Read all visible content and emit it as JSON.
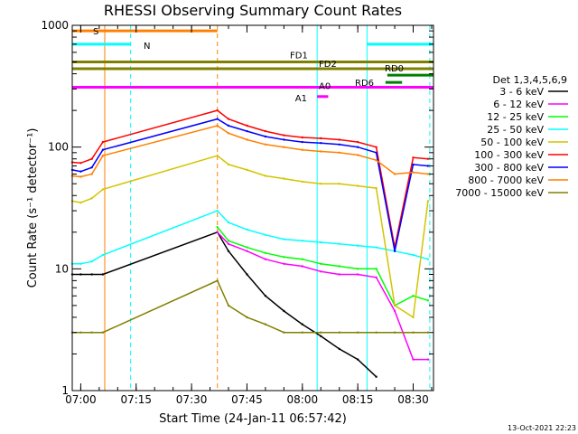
{
  "chart_data": {
    "type": "line",
    "title": "RHESSI Observing Summary Count Rates",
    "xlabel": "Start Time (24-Jan-11 06:57:42)",
    "ylabel": "Count Rate (s⁻¹ detector⁻¹)",
    "y_scale": "log",
    "ylim": [
      1,
      1000
    ],
    "xlim": [
      "06:57:42",
      "08:35:30"
    ],
    "x_ticks": [
      "07:00",
      "07:15",
      "07:30",
      "07:45",
      "08:00",
      "08:15",
      "08:30"
    ],
    "y_ticks": [
      "1",
      "10",
      "100",
      "1000"
    ],
    "timestamp": "13-Oct-2021 22:23",
    "legend": {
      "placement": "right",
      "header": "Det 1,3,4,5,6,9",
      "entries": [
        {
          "label": "3 - 6 keV",
          "color": "#000000"
        },
        {
          "label": "6 - 12 keV",
          "color": "#ff00ff"
        },
        {
          "label": "12 - 25 keV",
          "color": "#00ff00"
        },
        {
          "label": "25 - 50 keV",
          "color": "#00ffff"
        },
        {
          "label": "50 - 100 keV",
          "color": "#d4c400"
        },
        {
          "label": "100 - 300 keV",
          "color": "#ff0000"
        },
        {
          "label": "300 - 800 keV",
          "color": "#0000ff"
        },
        {
          "label": "800 - 7000 keV",
          "color": "#ff8000"
        },
        {
          "label": "7000 - 15000 keV",
          "color": "#808000"
        }
      ]
    },
    "flags": [
      {
        "label": "S",
        "color": "#ff8000",
        "start": "06:57:42",
        "end": "07:37:00",
        "y": 900
      },
      {
        "label": "N",
        "color": "#00ffff",
        "start": "06:57:42",
        "end": "07:13:30",
        "y": 700,
        "start2": "08:17:30",
        "end2": "08:35:30"
      },
      {
        "label": "FD1",
        "color": "#808000",
        "start": "06:57:42",
        "end": "08:35:30",
        "y": 500
      },
      {
        "label": "FD2",
        "color": "#808000",
        "start": "06:57:42",
        "end": "08:35:30",
        "y": 440
      },
      {
        "label": "RD0",
        "color": "#008000",
        "start": "08:23:00",
        "end": "08:35:30",
        "y": 390
      },
      {
        "label": "RD6",
        "color": "#008000",
        "start": "08:22:30",
        "end": "08:27:00",
        "y": 340
      },
      {
        "label": "A0",
        "color": "#ff00ff",
        "start": "06:57:42",
        "end": "08:35:30",
        "y": 310
      },
      {
        "label": "A1",
        "color": "#ff00ff",
        "start": "08:04:00",
        "end": "08:07:00",
        "y": 260
      }
    ],
    "vlines": [
      {
        "time": "06:57:42",
        "color": "#00ffff"
      },
      {
        "time": "07:06:30",
        "color": "#ff8000",
        "style": "solid"
      },
      {
        "time": "07:13:30",
        "color": "#00ffff",
        "style": "dashed"
      },
      {
        "time": "07:37:00",
        "color": "#ff8000",
        "style": "dashed"
      },
      {
        "time": "08:04:00",
        "color": "#00ffff",
        "style": "solid"
      },
      {
        "time": "08:17:30",
        "color": "#00ffff",
        "style": "solid"
      },
      {
        "time": "08:34:30",
        "color": "#00ffff",
        "style": "dashed"
      }
    ],
    "series": [
      {
        "name": "3 - 6 keV",
        "color": "#000000",
        "x": [
          "06:57:42",
          "07:00",
          "07:03",
          "07:06",
          "07:37",
          "07:40",
          "07:45",
          "07:50",
          "07:55",
          "08:00",
          "08:05",
          "08:10",
          "08:15",
          "08:20"
        ],
        "y": [
          9,
          9,
          9,
          9,
          20,
          14,
          9,
          6,
          4.5,
          3.5,
          2.8,
          2.2,
          1.8,
          1.3
        ]
      },
      {
        "name": "6 - 12 keV",
        "color": "#ff00ff",
        "x": [
          "07:37",
          "07:40",
          "07:45",
          "07:50",
          "07:55",
          "08:00",
          "08:05",
          "08:10",
          "08:15",
          "08:20",
          "08:25",
          "08:30",
          "08:34"
        ],
        "y": [
          20,
          16,
          14,
          12,
          11,
          10.5,
          9.5,
          9,
          9,
          8.5,
          4.5,
          1.8,
          1.8
        ]
      },
      {
        "name": "12 - 25 keV",
        "color": "#00ff00",
        "x": [
          "07:37",
          "07:40",
          "07:45",
          "07:50",
          "07:55",
          "08:00",
          "08:05",
          "08:10",
          "08:15",
          "08:20",
          "08:25",
          "08:30",
          "08:34"
        ],
        "y": [
          22,
          17,
          15,
          13.5,
          12.5,
          12,
          11,
          10.5,
          10,
          10,
          5,
          6,
          5.5
        ]
      },
      {
        "name": "25 - 50 keV",
        "color": "#00ffff",
        "x": [
          "06:57:42",
          "07:00",
          "07:03",
          "07:06",
          "07:37",
          "07:40",
          "07:45",
          "07:50",
          "07:55",
          "08:00",
          "08:05",
          "08:10",
          "08:15",
          "08:20",
          "08:25",
          "08:30",
          "08:34"
        ],
        "y": [
          11,
          11,
          11.5,
          13,
          30,
          24,
          21,
          19,
          17.5,
          17,
          16.5,
          16,
          15.5,
          15,
          14,
          13,
          12
        ]
      },
      {
        "name": "50 - 100 keV",
        "color": "#d4c400",
        "x": [
          "06:57:42",
          "07:00",
          "07:03",
          "07:06",
          "07:37",
          "07:40",
          "07:45",
          "07:50",
          "07:55",
          "08:00",
          "08:05",
          "08:10",
          "08:15",
          "08:20",
          "08:25",
          "08:30",
          "08:34"
        ],
        "y": [
          36,
          35,
          38,
          45,
          85,
          72,
          65,
          58,
          55,
          52,
          50,
          50,
          48,
          46,
          5,
          4,
          36
        ]
      },
      {
        "name": "100 - 300 keV",
        "color": "#ff0000",
        "x": [
          "06:57:42",
          "07:00",
          "07:03",
          "07:06",
          "07:37",
          "07:40",
          "07:45",
          "07:50",
          "07:55",
          "08:00",
          "08:05",
          "08:10",
          "08:15",
          "08:20",
          "08:25",
          "08:30",
          "08:34"
        ],
        "y": [
          75,
          74,
          80,
          110,
          200,
          170,
          150,
          135,
          125,
          120,
          118,
          115,
          110,
          100,
          15,
          82,
          80
        ]
      },
      {
        "name": "300 - 800 keV",
        "color": "#0000ff",
        "x": [
          "06:57:42",
          "07:00",
          "07:03",
          "07:06",
          "07:37",
          "07:40",
          "07:45",
          "07:50",
          "07:55",
          "08:00",
          "08:05",
          "08:10",
          "08:15",
          "08:20",
          "08:25",
          "08:30",
          "08:34"
        ],
        "y": [
          65,
          63,
          68,
          95,
          170,
          150,
          135,
          122,
          115,
          110,
          108,
          105,
          100,
          90,
          14,
          72,
          70
        ]
      },
      {
        "name": "800 - 7000 keV",
        "color": "#ff8000",
        "x": [
          "06:57:42",
          "07:00",
          "07:03",
          "07:06",
          "07:37",
          "07:40",
          "07:45",
          "07:50",
          "07:55",
          "08:00",
          "08:05",
          "08:10",
          "08:15",
          "08:20",
          "08:25",
          "08:30",
          "08:34"
        ],
        "y": [
          58,
          57,
          60,
          85,
          150,
          130,
          115,
          105,
          100,
          95,
          92,
          90,
          86,
          78,
          60,
          62,
          60
        ]
      },
      {
        "name": "7000 - 15000 keV",
        "color": "#808000",
        "x": [
          "06:57:42",
          "07:00",
          "07:03",
          "07:06",
          "07:37",
          "07:40",
          "07:45",
          "07:50",
          "07:55",
          "08:00",
          "08:05",
          "08:10",
          "08:15",
          "08:20",
          "08:25",
          "08:30",
          "08:34"
        ],
        "y": [
          3,
          3,
          3,
          3,
          8,
          5,
          4,
          3.5,
          3,
          3,
          3,
          3,
          3,
          3,
          3,
          3,
          3
        ]
      }
    ]
  }
}
